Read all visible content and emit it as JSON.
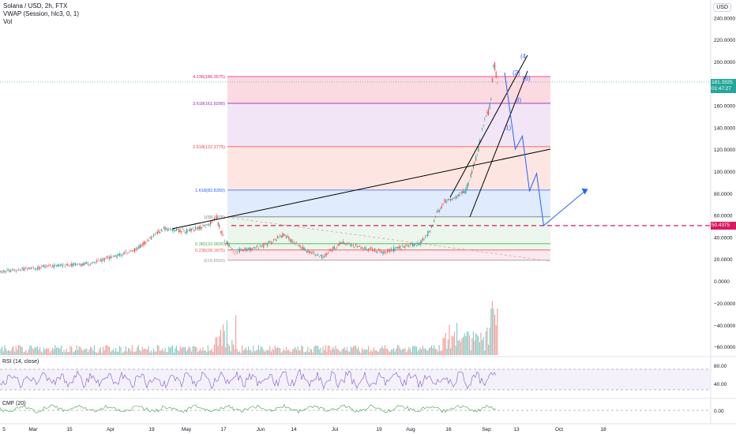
{
  "header": {
    "symbol_line": "Solana / USD, 2h, FTX",
    "indicator_line": "VWAP (Session, hlc3, 0, 1)",
    "volume_line": "Vol",
    "currency_badge": "USD"
  },
  "colors": {
    "bull": "#26a69a",
    "bear": "#ef5350",
    "rsi": "#7e57c2",
    "cmf": "#43a047",
    "projection": "#2962ff",
    "support_line": "#d81b60",
    "trendline": "#000000",
    "price_tag_bg": "#26a69a",
    "support_tag_bg": "#d81b60"
  },
  "chart_data": {
    "type": "candlestick",
    "title": "Solana / USD, 2h, FTX",
    "x_axis_labels": [
      "5",
      "Mar",
      "15",
      "Apr",
      "19",
      "May",
      "17",
      "Jun",
      "14",
      "Jul",
      "19",
      "Aug",
      "16",
      "Sep",
      "13",
      "Oct",
      "18"
    ],
    "price_axis": {
      "ticks": [
        240,
        220,
        200,
        180,
        160,
        140,
        120,
        100,
        80,
        60,
        40,
        20
      ],
      "tick_labels": [
        "240.0000",
        "220.0000",
        "200.0000",
        "180.0000",
        "160.0000",
        "140.0000",
        "120.0000",
        "100.0000",
        "80.0000",
        "60.0000",
        "40.0000",
        "20.0000"
      ],
      "range": [
        0,
        250
      ]
    },
    "price_path": [
      [
        0,
        8
      ],
      [
        0.04,
        11
      ],
      [
        0.08,
        14
      ],
      [
        0.12,
        15
      ],
      [
        0.16,
        22
      ],
      [
        0.19,
        28
      ],
      [
        0.21,
        38
      ],
      [
        0.23,
        48
      ],
      [
        0.26,
        45
      ],
      [
        0.29,
        50
      ],
      [
        0.305,
        58
      ],
      [
        0.315,
        38
      ],
      [
        0.33,
        26
      ],
      [
        0.37,
        32
      ],
      [
        0.4,
        42
      ],
      [
        0.43,
        28
      ],
      [
        0.455,
        22
      ],
      [
        0.48,
        35
      ],
      [
        0.51,
        30
      ],
      [
        0.54,
        26
      ],
      [
        0.56,
        30
      ],
      [
        0.59,
        34
      ],
      [
        0.605,
        45
      ],
      [
        0.615,
        62
      ],
      [
        0.625,
        72
      ],
      [
        0.64,
        76
      ],
      [
        0.655,
        82
      ],
      [
        0.665,
        100
      ],
      [
        0.675,
        125
      ],
      [
        0.68,
        140
      ],
      [
        0.69,
        160
      ],
      [
        0.695,
        200
      ],
      [
        0.7,
        178
      ]
    ],
    "last_price": {
      "value": 181.3325,
      "label": "181.3325",
      "countdown": "01:47:27"
    },
    "support_level": {
      "value": 50.4375,
      "label": "50.4375"
    },
    "fibonacci_levels": [
      {
        "ratio": 0,
        "price": 18.855,
        "label": "0(18.8550)"
      },
      {
        "ratio": 0.236,
        "price": 28.1875,
        "label": "0.236(28.1875)"
      },
      {
        "ratio": 0.382,
        "price": 33.96,
        "label": "0.382(33.9600)"
      },
      {
        "ratio": 1,
        "price": 58.3975,
        "label": "1(58.3975)"
      },
      {
        "ratio": 1.618,
        "price": 82.835,
        "label": "1.618(82.8350)"
      },
      {
        "ratio": 2.618,
        "price": 122.3775,
        "label": "2.618(122.3775)"
      },
      {
        "ratio": 3.618,
        "price": 161.92,
        "label": "3.618(161.9200)"
      },
      {
        "ratio": 4.236,
        "price": 186.3575,
        "label": "4.236(186.3575)"
      }
    ],
    "wave_labels": [
      {
        "label": "1)",
        "price": 140
      },
      {
        "label": "3)",
        "price": 165
      },
      {
        "label": "(2)",
        "price": 190
      },
      {
        "label": "(5)",
        "price": 185
      },
      {
        "label": "(4",
        "price": 205
      }
    ],
    "projection_path": [
      [
        0.71,
        190
      ],
      [
        0.725,
        120
      ],
      [
        0.735,
        132
      ],
      [
        0.745,
        82
      ],
      [
        0.755,
        98
      ],
      [
        0.765,
        50.4375
      ],
      [
        0.825,
        83
      ]
    ],
    "volume_axis": {
      "tick_labels": [
        "0.0000",
        "−20.0000",
        "−40.0000",
        "−60.0000"
      ]
    },
    "rsi": {
      "name": "RSI (14, close)",
      "tick_labels": [
        "80.00",
        "40.00"
      ],
      "upper": 70,
      "lower": 30
    },
    "cmf": {
      "name": "CMF (20)",
      "tick_labels": [
        "0.00"
      ]
    }
  }
}
